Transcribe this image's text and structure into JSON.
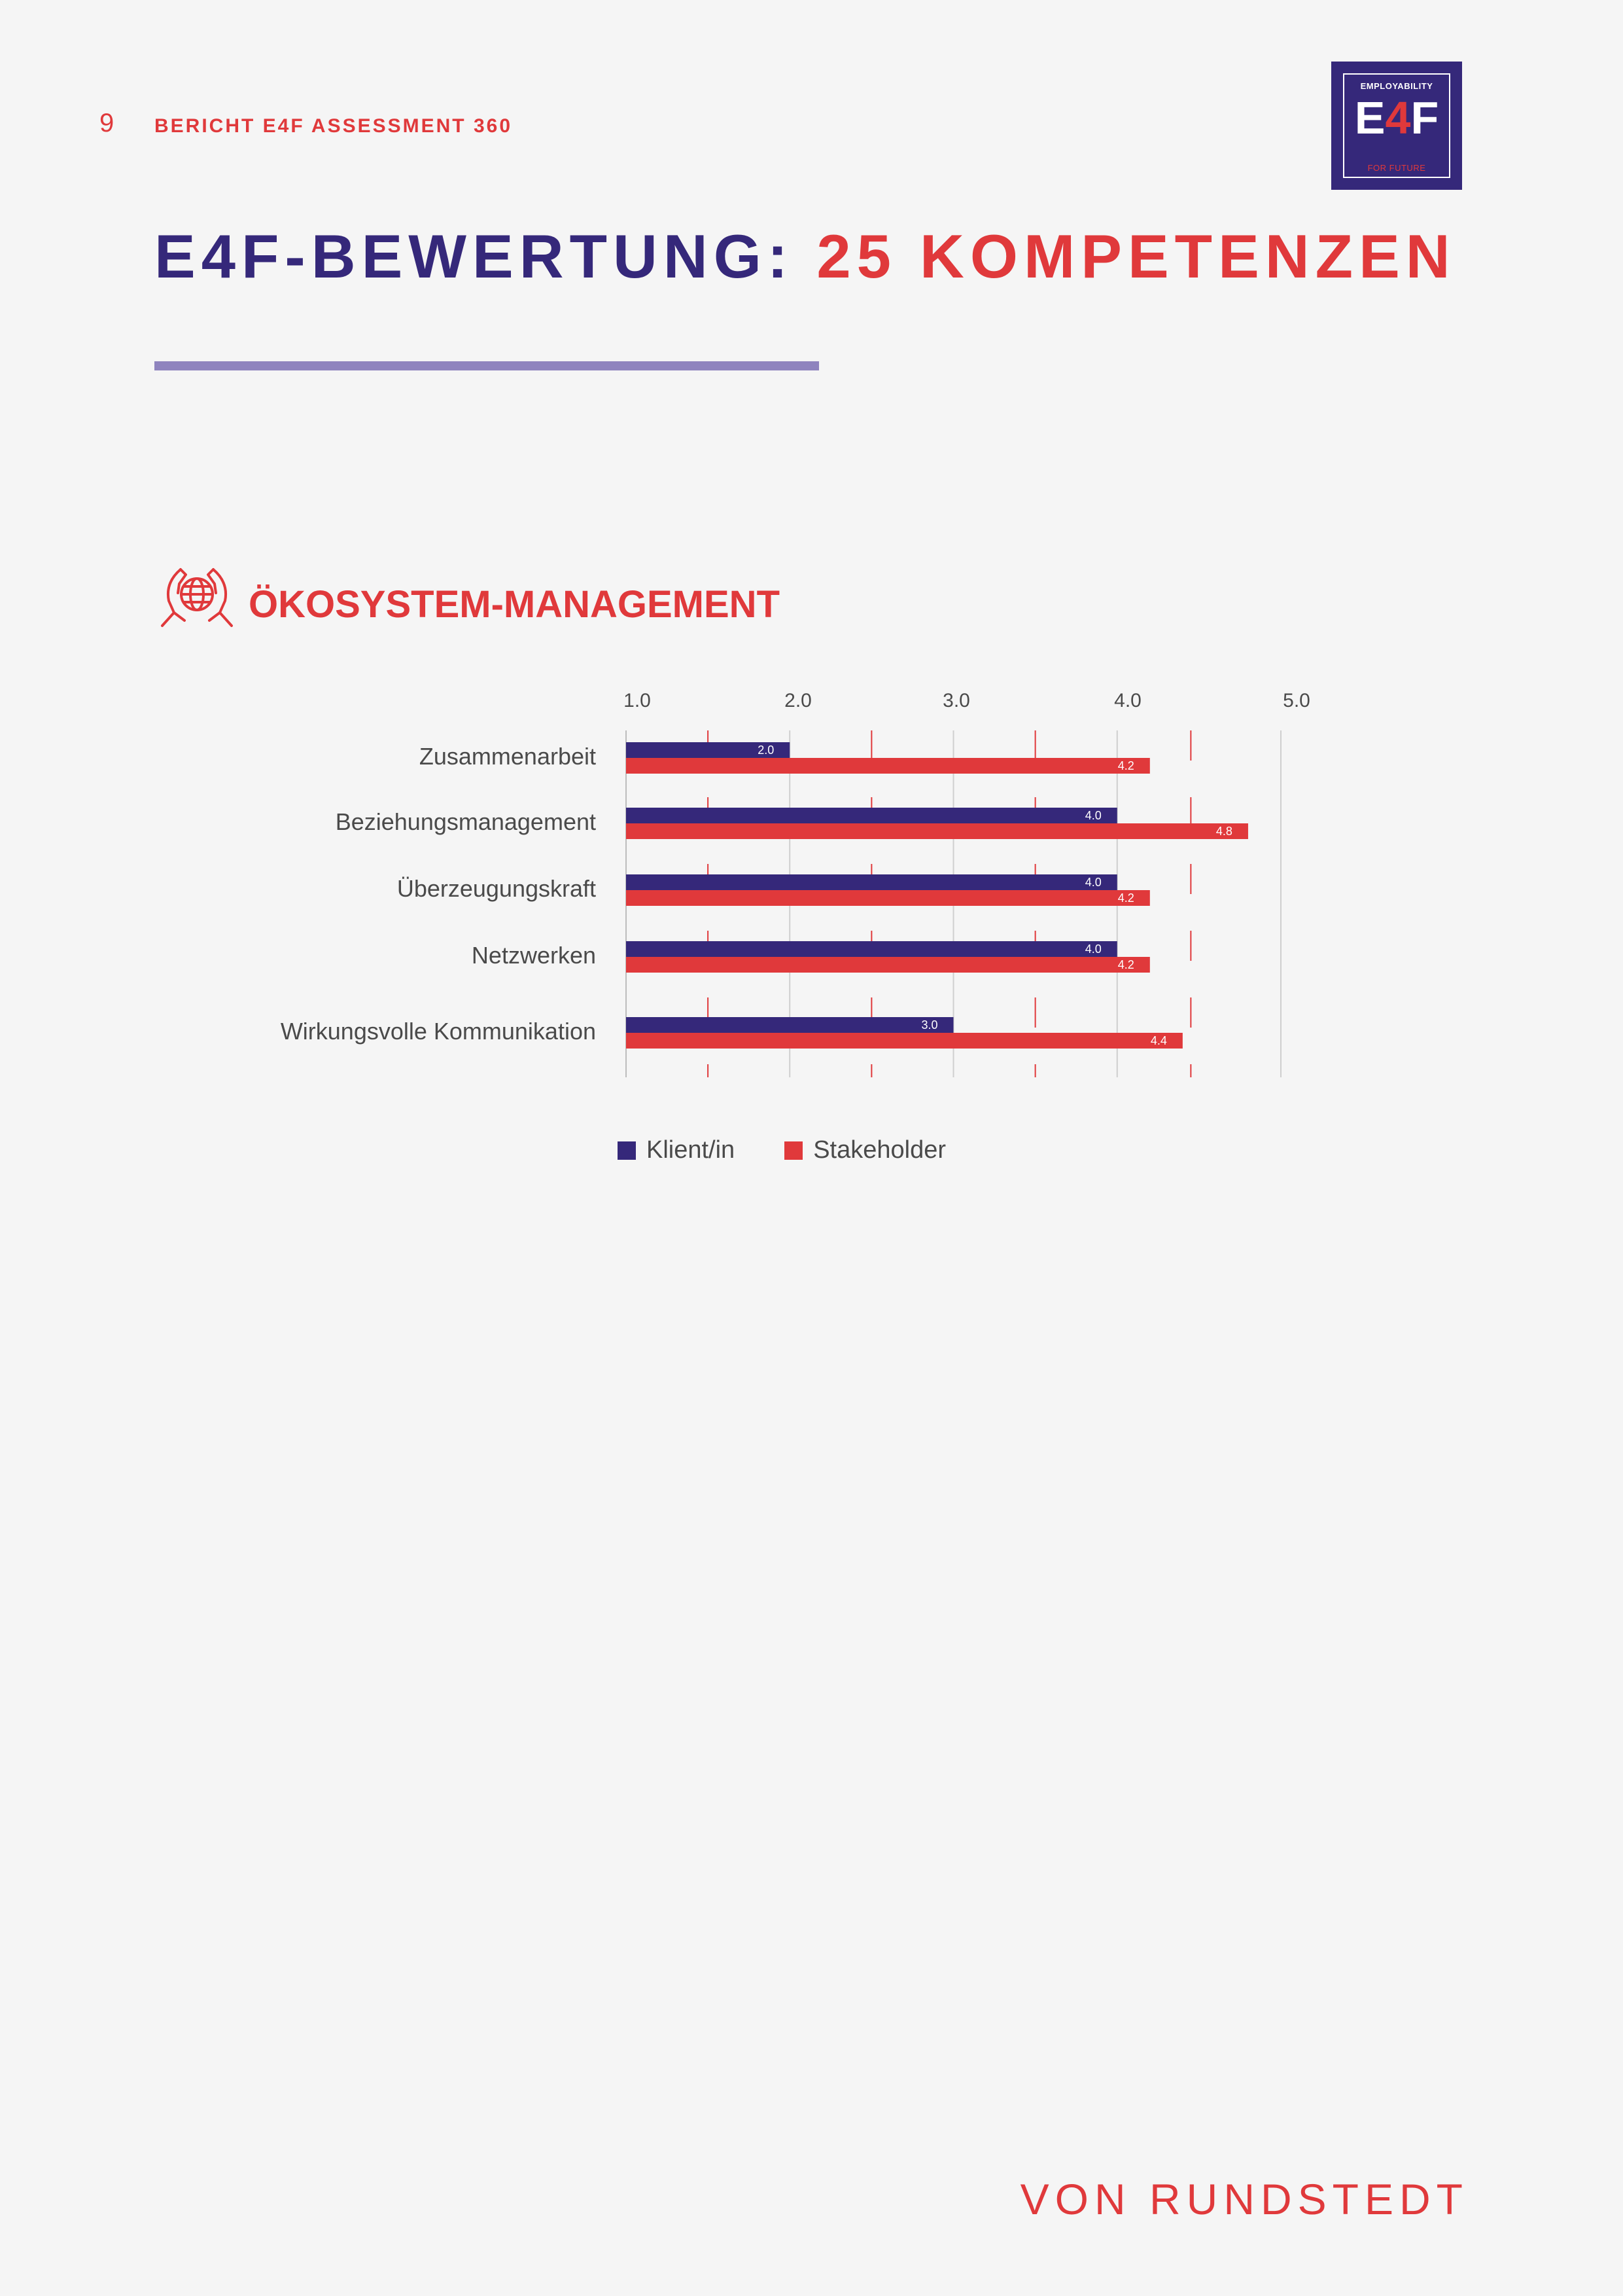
{
  "header": {
    "page_number": "9",
    "report_label": "BERICHT E4F ASSESSMENT 360"
  },
  "logo": {
    "top_text": "EMPLOYABILITY",
    "mid_e": "E",
    "mid_4": "4",
    "mid_f": "F",
    "bottom_text": "FOR FUTURE"
  },
  "title": {
    "part1": "E4F-BEWERTUNG:",
    "part2": "25 KOMPETENZEN"
  },
  "section": {
    "icon": "hands-globe-icon",
    "title": "ÖKOSYSTEM-MANAGEMENT"
  },
  "colors": {
    "navy": "#35287a",
    "red": "#e0393b",
    "rule": "#8f84be"
  },
  "chart_data": {
    "type": "bar",
    "orientation": "horizontal",
    "categories": [
      "Zusammenarbeit",
      "Beziehungsmanagement",
      "Überzeugungskraft",
      "Netzwerken",
      "Wirkungsvolle Kommunikation"
    ],
    "series": [
      {
        "name": "Klient/in",
        "color": "#35287a",
        "values": [
          2.0,
          4.0,
          4.0,
          4.0,
          3.0
        ]
      },
      {
        "name": "Stakeholder",
        "color": "#e0393b",
        "values": [
          4.2,
          4.8,
          4.2,
          4.2,
          4.4
        ]
      }
    ],
    "xticks": [
      "1.0",
      "2.0",
      "3.0",
      "4.0",
      "5.0"
    ],
    "xlim": [
      1.0,
      5.0
    ],
    "legend_position": "bottom",
    "grid": true
  },
  "footer": {
    "brand": "VON RUNDSTEDT"
  }
}
